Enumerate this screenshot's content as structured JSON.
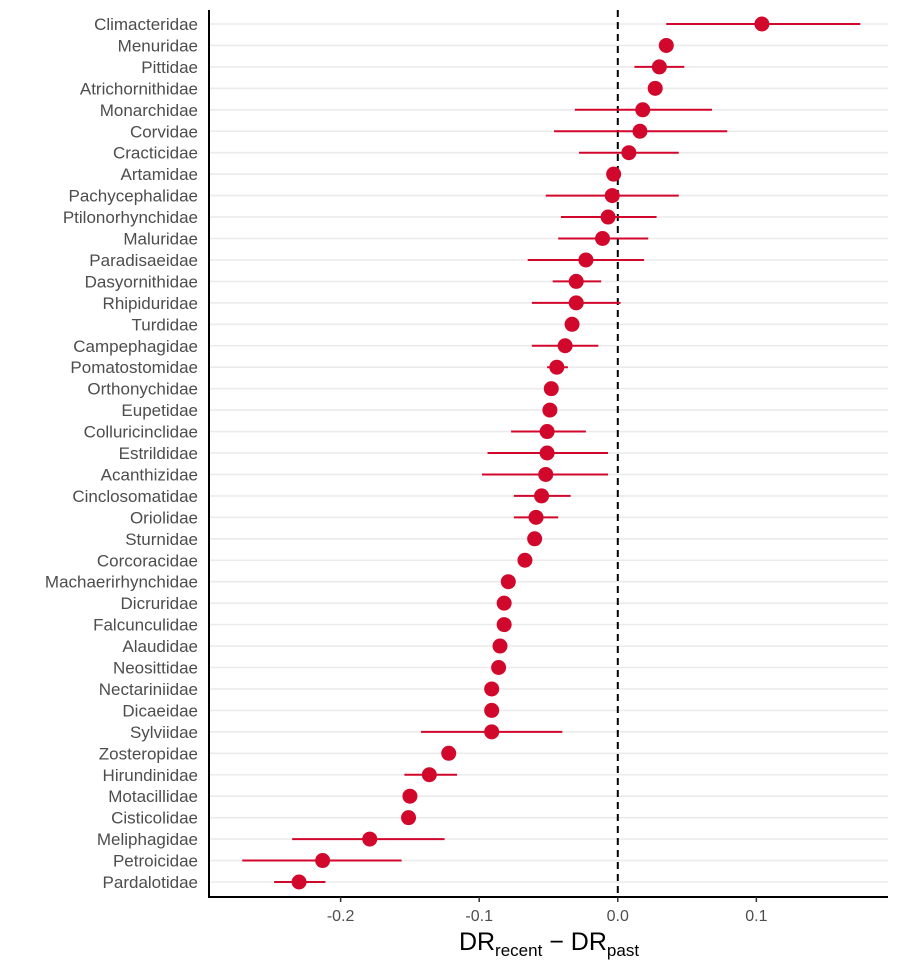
{
  "chart_data": {
    "type": "scatter",
    "subtype": "dot-and-whisker",
    "orientation": "horizontal",
    "xlabel": {
      "base1": "DR",
      "sub1": "recent",
      "op": " − ",
      "base2": "DR",
      "sub2": "past"
    },
    "xlim": [
      -0.295,
      0.195
    ],
    "xticks": [
      -0.2,
      -0.1,
      0.0,
      0.1
    ],
    "xtick_labels": [
      "-0.2",
      "-0.1",
      "0.0",
      "0.1"
    ],
    "reference_line": {
      "x": 0,
      "style": "dashed"
    },
    "grid": {
      "horizontal": true,
      "vertical": false
    },
    "colors": {
      "point": "#d2072c",
      "interval": "#d2072c",
      "grid": "#ebebeb",
      "axis": "#000000"
    },
    "categories": [
      "Climacteridae",
      "Menuridae",
      "Pittidae",
      "Atrichornithidae",
      "Monarchidae",
      "Corvidae",
      "Cracticidae",
      "Artamidae",
      "Pachycephalidae",
      "Ptilonorhynchidae",
      "Maluridae",
      "Paradisaeidae",
      "Dasyornithidae",
      "Rhipiduridae",
      "Turdidae",
      "Campephagidae",
      "Pomatostomidae",
      "Orthonychidae",
      "Eupetidae",
      "Colluricinclidae",
      "Estrildidae",
      "Acanthizidae",
      "Cinclosomatidae",
      "Oriolidae",
      "Sturnidae",
      "Corcoracidae",
      "Machaerirhynchidae",
      "Dicruridae",
      "Falcunculidae",
      "Alaudidae",
      "Neosittidae",
      "Nectariniidae",
      "Dicaeidae",
      "Sylviidae",
      "Zosteropidae",
      "Hirundinidae",
      "Motacillidae",
      "Cisticolidae",
      "Meliphagidae",
      "Petroicidae",
      "Pardalotidae"
    ],
    "values": [
      0.104,
      0.035,
      0.03,
      0.027,
      0.018,
      0.016,
      0.008,
      -0.003,
      -0.004,
      -0.007,
      -0.011,
      -0.023,
      -0.03,
      -0.03,
      -0.033,
      -0.038,
      -0.044,
      -0.048,
      -0.049,
      -0.051,
      -0.051,
      -0.052,
      -0.055,
      -0.059,
      -0.06,
      -0.067,
      -0.079,
      -0.082,
      -0.082,
      -0.085,
      -0.086,
      -0.091,
      -0.091,
      -0.091,
      -0.122,
      -0.136,
      -0.15,
      -0.151,
      -0.179,
      -0.213,
      -0.23
    ],
    "lower": [
      0.035,
      null,
      0.012,
      null,
      -0.031,
      -0.046,
      -0.028,
      null,
      -0.052,
      -0.041,
      -0.043,
      -0.065,
      -0.047,
      -0.062,
      null,
      -0.062,
      -0.051,
      null,
      null,
      -0.077,
      -0.094,
      -0.098,
      -0.075,
      -0.075,
      null,
      null,
      null,
      null,
      null,
      null,
      null,
      null,
      null,
      -0.142,
      null,
      -0.154,
      null,
      null,
      -0.235,
      -0.271,
      -0.248
    ],
    "upper": [
      0.175,
      null,
      0.048,
      null,
      0.068,
      0.079,
      0.044,
      null,
      0.044,
      0.028,
      0.022,
      0.019,
      -0.012,
      0.002,
      null,
      -0.014,
      -0.036,
      null,
      null,
      -0.023,
      -0.007,
      -0.007,
      -0.034,
      -0.043,
      null,
      null,
      null,
      null,
      null,
      null,
      null,
      null,
      null,
      -0.04,
      null,
      -0.116,
      null,
      null,
      -0.125,
      -0.156,
      -0.211
    ]
  }
}
